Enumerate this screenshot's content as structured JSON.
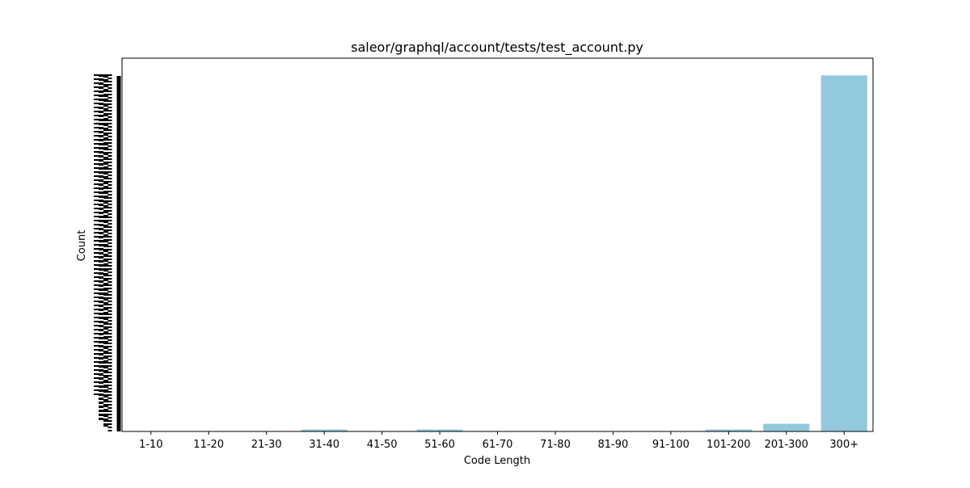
{
  "chart_data": {
    "type": "bar",
    "title": "saleor/graphql/account/tests/test_account.py",
    "xlabel": "Code Length",
    "ylabel": "Count",
    "categories": [
      "1-10",
      "11-20",
      "21-30",
      "31-40",
      "41-50",
      "51-60",
      "61-70",
      "71-80",
      "81-90",
      "91-100",
      "101-200",
      "201-300",
      "300+"
    ],
    "values": [
      0,
      0,
      0,
      1,
      0,
      1,
      0,
      0,
      0,
      0,
      1,
      4,
      186
    ],
    "ylim": [
      0,
      195
    ],
    "bar_color": "#92c9df",
    "grid": false,
    "legend": "none"
  }
}
